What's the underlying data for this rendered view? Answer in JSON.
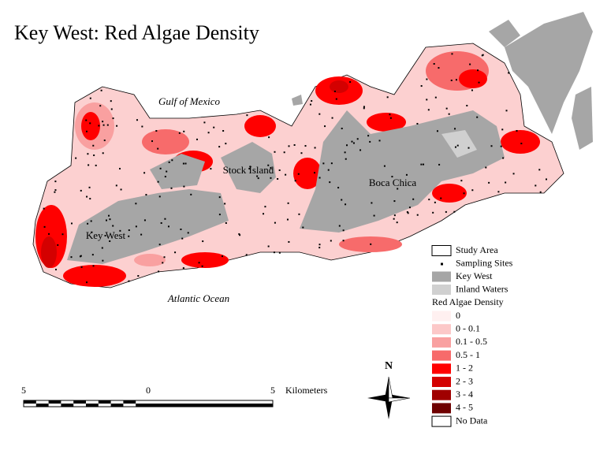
{
  "title": "Key West:  Red Algae Density",
  "places": [
    "Gulf of Mexico",
    "Stock Island",
    "Boca Chica",
    "Key West",
    "Atlantic Ocean"
  ],
  "legend": {
    "items": [
      {
        "label": "Study Area",
        "color": "#ffffff"
      },
      {
        "label": "Sampling Sites",
        "color": "#000000"
      },
      {
        "label": "Key West",
        "color": "#a6a6a6"
      },
      {
        "label": "Inland Waters",
        "color": "#d0d0d0"
      }
    ],
    "density_title": "Red Algae Density",
    "classes": [
      {
        "label": "0",
        "color": "#fff0f0"
      },
      {
        "label": "0 - 0.1",
        "color": "#fcc8c8"
      },
      {
        "label": "0.1 - 0.5",
        "color": "#f9a0a0"
      },
      {
        "label": "0.5 - 1",
        "color": "#f76b6b"
      },
      {
        "label": "1 - 2",
        "color": "#ff0000"
      },
      {
        "label": "2 - 3",
        "color": "#d40000"
      },
      {
        "label": "3 - 4",
        "color": "#a00000"
      },
      {
        "label": "4 - 5",
        "color": "#6e0000"
      },
      {
        "label": "No Data",
        "color": "#ffffff"
      }
    ]
  },
  "scale_bar": {
    "labels": [
      "5",
      "0",
      "5"
    ],
    "unit": "Kilometers"
  },
  "north": "N"
}
